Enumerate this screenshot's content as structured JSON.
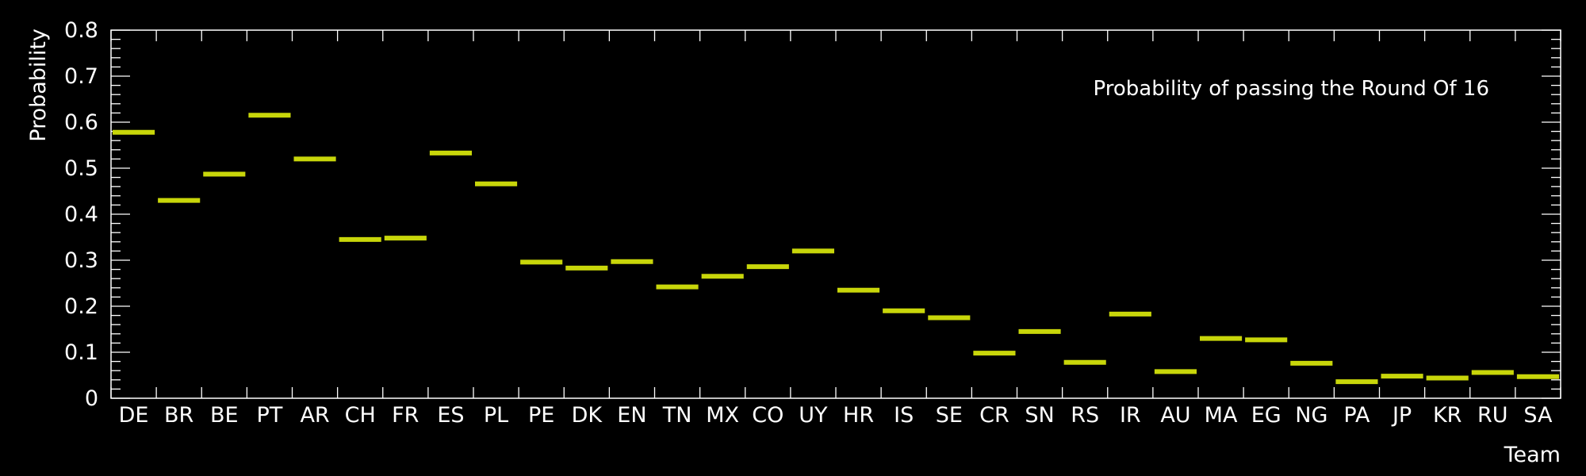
{
  "chart_data": {
    "type": "bar",
    "title": "",
    "legend_text": "Probability of passing the Round Of 16",
    "legend_position": "top-right",
    "xlabel": "Team",
    "ylabel": "Probability",
    "ylim": [
      0,
      0.8
    ],
    "yticks": [
      "0",
      "0.1",
      "0.2",
      "0.3",
      "0.4",
      "0.5",
      "0.6",
      "0.7",
      "0.8"
    ],
    "categories": [
      "DE",
      "BR",
      "BE",
      "PT",
      "AR",
      "CH",
      "FR",
      "ES",
      "PL",
      "PE",
      "DK",
      "EN",
      "TN",
      "MX",
      "CO",
      "UY",
      "HR",
      "IS",
      "SE",
      "CR",
      "SN",
      "RS",
      "IR",
      "AU",
      "MA",
      "EG",
      "NG",
      "PA",
      "JP",
      "KR",
      "RU",
      "SA"
    ],
    "values": [
      0.578,
      0.43,
      0.487,
      0.615,
      0.52,
      0.345,
      0.348,
      0.533,
      0.466,
      0.296,
      0.283,
      0.297,
      0.242,
      0.265,
      0.286,
      0.32,
      0.235,
      0.19,
      0.175,
      0.098,
      0.145,
      0.078,
      0.183,
      0.058,
      0.13,
      0.127,
      0.076,
      0.036,
      0.048,
      0.044,
      0.056,
      0.047
    ],
    "grid": false,
    "colors": {
      "background": "#000000",
      "axis": "#ffffff",
      "marker": "#c8d60a"
    }
  }
}
